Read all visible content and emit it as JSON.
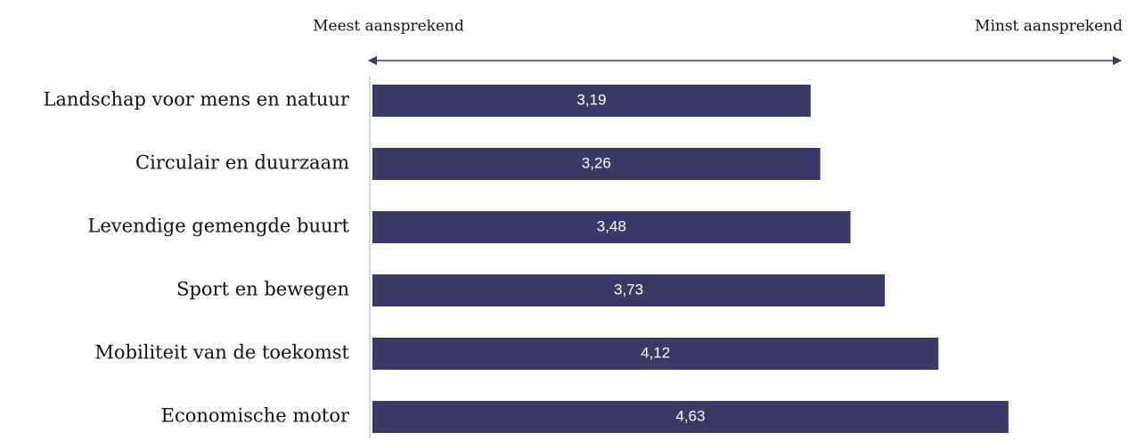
{
  "chart_data": {
    "type": "hbar",
    "axis_labels": [
      "Meest aansprekend",
      "Minst aansprekend"
    ],
    "categories": [
      "Landschap voor mens en natuur",
      "Circulair en duurzaam",
      "Levendige gemengde buurt",
      "Sport en bewegen",
      "Mobiliteit van de toekomst",
      "Economische motor"
    ],
    "values": [
      3.19,
      3.26,
      3.48,
      3.73,
      4.12,
      4.63
    ],
    "value_labels": [
      "3,19",
      "3,26",
      "3,48",
      "3,73",
      "4,12",
      "4,63"
    ],
    "color": "#383b65",
    "xlim": [
      0,
      5.5
    ]
  }
}
